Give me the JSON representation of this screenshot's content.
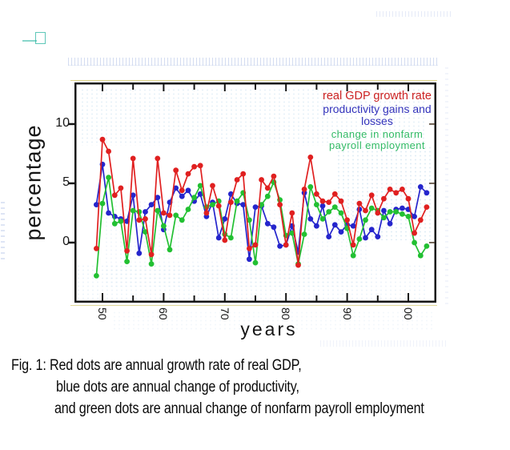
{
  "figure": {
    "y_axis_label": "percentage",
    "x_axis_label": "years",
    "legend": [
      {
        "label": "real GDP growth rate",
        "color": "#cc2222"
      },
      {
        "label": "productivity gains and losses",
        "color": "#3333bb"
      },
      {
        "label_line1": "change in nonfarm",
        "label_line2": "payroll employment",
        "color": "#33bb66"
      }
    ],
    "caption": {
      "line1": "Fig. 1: Red dots are annual growth rate of real GDP,",
      "line2": "blue dots are annual change of productivity,",
      "line3": "and green dots are annual change of nonfarm payroll employment"
    }
  },
  "chart_data": {
    "type": "scatter",
    "connected": true,
    "title": "",
    "xlabel": "years",
    "ylabel": "percentage",
    "grid": false,
    "legend_position": "top-right",
    "xlim": [
      1945.42,
      2004.58
    ],
    "ylim": [
      -5.07,
      13.51
    ],
    "x_ticks": [
      {
        "label": "50",
        "year": 1950
      },
      {
        "label": "60",
        "year": 1960
      },
      {
        "label": "70",
        "year": 1970
      },
      {
        "label": "80",
        "year": 1980
      },
      {
        "label": "90",
        "year": 1990
      },
      {
        "label": "00",
        "year": 2000
      }
    ],
    "x_minor_tick_years": [
      1950,
      1955,
      1960,
      1965,
      1970,
      1975,
      1980,
      1985,
      1990,
      1995,
      2000
    ],
    "y_ticks": [
      {
        "label": "10",
        "value": 10
      },
      {
        "label": "5",
        "value": 5
      },
      {
        "label": "0",
        "value": 0
      }
    ],
    "x": [
      1949,
      1950,
      1951,
      1952,
      1953,
      1954,
      1955,
      1956,
      1957,
      1958,
      1959,
      1960,
      1961,
      1962,
      1963,
      1964,
      1965,
      1966,
      1967,
      1968,
      1969,
      1970,
      1971,
      1972,
      1973,
      1974,
      1975,
      1976,
      1977,
      1978,
      1979,
      1980,
      1981,
      1982,
      1983,
      1984,
      1985,
      1986,
      1987,
      1988,
      1989,
      1990,
      1991,
      1992,
      1993,
      1994,
      1995,
      1996,
      1997,
      1998,
      1999,
      2000,
      2001,
      2002,
      2003
    ],
    "series": [
      {
        "name": "real GDP growth rate",
        "color": "#e02020",
        "values": [
          -0.5,
          8.7,
          7.7,
          4.0,
          4.6,
          -0.7,
          7.1,
          1.9,
          2.0,
          -1.0,
          7.1,
          2.5,
          2.3,
          6.1,
          4.4,
          5.8,
          6.4,
          6.5,
          2.5,
          4.8,
          3.1,
          0.2,
          3.4,
          5.3,
          5.8,
          -0.5,
          -0.2,
          5.3,
          4.6,
          5.6,
          3.2,
          -0.2,
          2.5,
          -1.9,
          4.5,
          7.2,
          4.1,
          3.5,
          3.4,
          4.1,
          3.5,
          1.9,
          -0.2,
          3.3,
          2.7,
          4.0,
          2.5,
          3.7,
          4.5,
          4.2,
          4.5,
          3.7,
          0.8,
          1.9,
          3.0
        ]
      },
      {
        "name": "productivity gains and losses",
        "color": "#2525cc",
        "values": [
          3.2,
          6.6,
          2.5,
          2.2,
          2.0,
          1.8,
          4.0,
          -0.9,
          2.6,
          3.2,
          3.8,
          1.1,
          3.4,
          4.6,
          3.9,
          4.4,
          3.5,
          4.1,
          2.2,
          3.4,
          0.4,
          2.0,
          4.1,
          3.3,
          3.2,
          -1.4,
          3.0,
          3.1,
          1.6,
          1.3,
          -0.3,
          -0.2,
          1.4,
          -0.8,
          4.2,
          2.0,
          1.4,
          3.1,
          0.5,
          1.5,
          0.9,
          1.5,
          1.4,
          2.8,
          0.4,
          1.1,
          0.5,
          2.7,
          1.6,
          2.8,
          2.9,
          2.8,
          2.2,
          4.7,
          4.2
        ]
      },
      {
        "name": "change in nonfarm payroll employment",
        "color": "#22c032",
        "values": [
          -2.8,
          3.3,
          5.5,
          1.6,
          1.8,
          -1.6,
          2.7,
          2.6,
          0.9,
          -1.8,
          2.7,
          1.4,
          -0.6,
          2.3,
          1.9,
          2.8,
          3.8,
          4.8,
          3.0,
          3.2,
          3.5,
          0.7,
          0.4,
          3.5,
          4.2,
          1.9,
          -1.7,
          3.2,
          3.9,
          5.1,
          3.6,
          0.6,
          0.8,
          -1.8,
          0.7,
          4.7,
          3.2,
          2.0,
          2.6,
          3.0,
          2.5,
          1.2,
          -1.1,
          0.3,
          1.9,
          2.9,
          2.7,
          2.1,
          2.6,
          2.6,
          2.4,
          2.2,
          0.0,
          -1.1,
          -0.3
        ]
      }
    ]
  }
}
